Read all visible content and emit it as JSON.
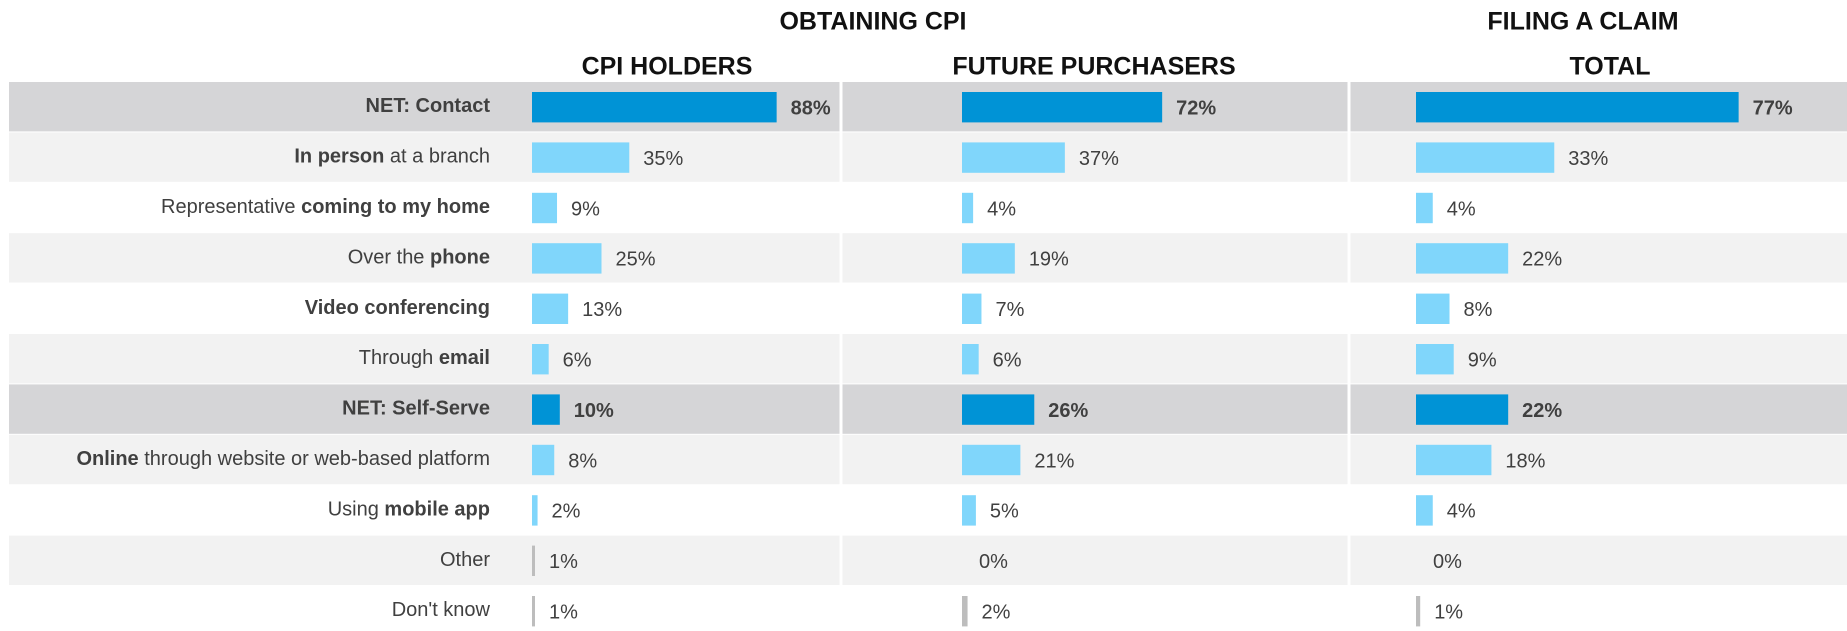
{
  "chart_data": {
    "type": "bar",
    "categories": [
      {
        "label": [
          {
            "text": "NET: Contact",
            "bold": true
          }
        ],
        "highlight": true
      },
      {
        "label": [
          {
            "text": "In person",
            "bold": true
          },
          {
            "text": " at a branch",
            "bold": false
          }
        ]
      },
      {
        "label": [
          {
            "text": "Representative ",
            "bold": false
          },
          {
            "text": "coming to my home",
            "bold": true
          }
        ]
      },
      {
        "label": [
          {
            "text": "Over the ",
            "bold": false
          },
          {
            "text": "phone",
            "bold": true
          }
        ]
      },
      {
        "label": [
          {
            "text": "Video conferencing",
            "bold": true
          }
        ]
      },
      {
        "label": [
          {
            "text": "Through ",
            "bold": false
          },
          {
            "text": "email",
            "bold": true
          }
        ]
      },
      {
        "label": [
          {
            "text": "NET: Self-Serve",
            "bold": true
          }
        ],
        "highlight": true
      },
      {
        "label": [
          {
            "text": "Online",
            "bold": true
          },
          {
            "text": " through website or web-based platform",
            "bold": false
          }
        ]
      },
      {
        "label": [
          {
            "text": "Using ",
            "bold": false
          },
          {
            "text": "mobile app",
            "bold": true
          }
        ]
      },
      {
        "label": [
          {
            "text": "Other",
            "bold": false
          }
        ],
        "minor": true
      },
      {
        "label": [
          {
            "text": "Don't know",
            "bold": false
          }
        ],
        "minor": true
      }
    ],
    "color": "#80d6fb",
    "color_highlight": "#0093d6",
    "color_minor": "#bdbdbd",
    "xlim": [
      0,
      100
    ],
    "groups": [
      {
        "title": "OBTAINING CPI",
        "series": [
          {
            "name": "CPI HOLDERS",
            "values": [
              88,
              35,
              9,
              25,
              13,
              6,
              10,
              8,
              2,
              1,
              1
            ],
            "value_labels": [
              "88%",
              "35%",
              "9%",
              "25%",
              "13%",
              "6%",
              "10%",
              "8%",
              "2%",
              "1%",
              "1%"
            ]
          },
          {
            "name": "FUTURE PURCHASERS",
            "values": [
              72,
              37,
              4,
              19,
              7,
              6,
              26,
              21,
              5,
              0,
              2
            ],
            "value_labels": [
              "72%",
              "37%",
              "4%",
              "19%",
              "7%",
              "6%",
              "26%",
              "21%",
              "5%",
              "0%",
              "2%"
            ]
          }
        ]
      },
      {
        "title": "FILING A CLAIM",
        "series": [
          {
            "name": "TOTAL",
            "values": [
              77,
              33,
              4,
              22,
              8,
              9,
              22,
              18,
              4,
              0,
              1
            ],
            "value_labels": [
              "77%",
              "33%",
              "4%",
              "22%",
              "8%",
              "9%",
              "22%",
              "18%",
              "4%",
              "0%",
              "1%"
            ]
          }
        ]
      }
    ]
  }
}
